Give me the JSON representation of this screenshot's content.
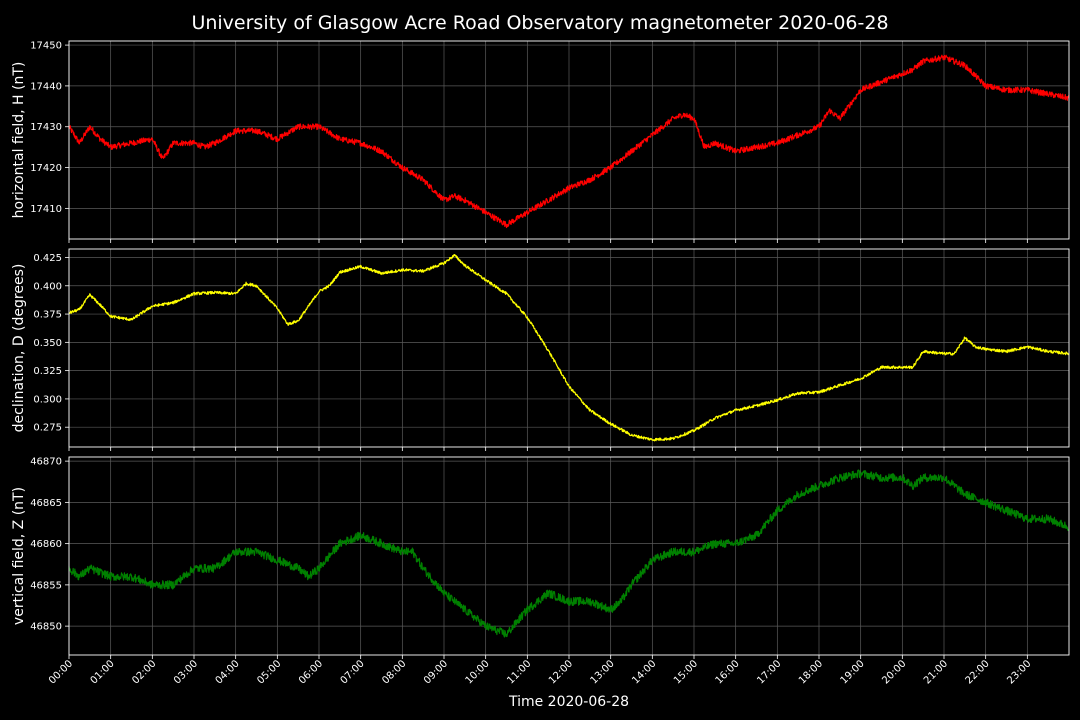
{
  "title": "University of Glasgow Acre Road Observatory magnetometer 2020-06-28",
  "xlabel": "Time 2020-06-28",
  "x_ticks": [
    "00:00",
    "01:00",
    "02:00",
    "03:00",
    "04:00",
    "05:00",
    "06:00",
    "07:00",
    "08:00",
    "09:00",
    "10:00",
    "11:00",
    "12:00",
    "13:00",
    "14:00",
    "15:00",
    "16:00",
    "17:00",
    "18:00",
    "19:00",
    "20:00",
    "21:00",
    "22:00",
    "23:00"
  ],
  "chart_data": [
    {
      "type": "line",
      "ylabel": "horizontal field, H (nT)",
      "color": "#ff0000",
      "xlim": [
        0,
        24
      ],
      "ylim": [
        17402.5,
        17451
      ],
      "yticks": [
        17410,
        17420,
        17430,
        17440,
        17450
      ],
      "grid": true,
      "series": [
        {
          "x": [
            0,
            0.25,
            0.5,
            0.75,
            1,
            1.5,
            2,
            2.25,
            2.5,
            3,
            3.25,
            3.5,
            4,
            4.5,
            5,
            5.5,
            6,
            6.5,
            7,
            7.5,
            8,
            8.5,
            9,
            9.25,
            9.5,
            10,
            10.5,
            11,
            11.5,
            12,
            12.5,
            13,
            13.5,
            14,
            14.5,
            14.75,
            15,
            15.25,
            15.5,
            16,
            16.5,
            17,
            17.5,
            18,
            18.25,
            18.5,
            19,
            19.5,
            20,
            20.25,
            20.5,
            21,
            21.25,
            21.5,
            22,
            22.5,
            23,
            23.5,
            24
          ],
          "y": [
            17430,
            17426,
            17430,
            17427,
            17425,
            17426,
            17427,
            17422,
            17426,
            17426,
            17425,
            17426,
            17429,
            17429,
            17427,
            17430,
            17430,
            17427,
            17426,
            17424,
            17420,
            17417,
            17412,
            17413,
            17412,
            17409,
            17406,
            17409,
            17412,
            17415,
            17417,
            17420,
            17424,
            17428,
            17432,
            17433,
            17432,
            17425,
            17426,
            17424,
            17425,
            17426,
            17428,
            17430,
            17434,
            17432,
            17439,
            17441,
            17443,
            17444,
            17446,
            17447,
            17446,
            17445,
            17440,
            17439,
            17439,
            17438,
            17437
          ],
          "noise": 0.7
        }
      ]
    },
    {
      "type": "line",
      "ylabel": "declination, D (degrees)",
      "color": "#ffff00",
      "xlim": [
        0,
        24
      ],
      "ylim": [
        0.2575,
        0.4325
      ],
      "yticks": [
        0.275,
        0.3,
        0.325,
        0.35,
        0.375,
        0.4,
        0.425
      ],
      "grid": true,
      "series": [
        {
          "x": [
            0,
            0.25,
            0.5,
            0.75,
            1,
            1.5,
            2,
            2.5,
            3,
            3.5,
            4,
            4.25,
            4.5,
            5,
            5.25,
            5.5,
            5.75,
            6,
            6.25,
            6.5,
            7,
            7.5,
            8,
            8.5,
            9,
            9.25,
            9.5,
            10,
            10.5,
            11,
            11.5,
            12,
            12.5,
            13,
            13.5,
            14,
            14.5,
            15,
            15.5,
            16,
            16.5,
            17,
            17.5,
            18,
            18.5,
            19,
            19.5,
            20,
            20.25,
            20.5,
            21,
            21.25,
            21.5,
            21.75,
            22,
            22.5,
            23,
            23.5,
            24
          ],
          "y": [
            0.376,
            0.379,
            0.392,
            0.383,
            0.373,
            0.37,
            0.382,
            0.385,
            0.393,
            0.394,
            0.393,
            0.402,
            0.4,
            0.38,
            0.366,
            0.369,
            0.382,
            0.395,
            0.4,
            0.412,
            0.417,
            0.411,
            0.414,
            0.413,
            0.42,
            0.427,
            0.418,
            0.405,
            0.393,
            0.372,
            0.343,
            0.311,
            0.29,
            0.278,
            0.268,
            0.264,
            0.265,
            0.272,
            0.283,
            0.29,
            0.294,
            0.299,
            0.305,
            0.306,
            0.312,
            0.318,
            0.328,
            0.328,
            0.328,
            0.342,
            0.34,
            0.34,
            0.354,
            0.346,
            0.344,
            0.342,
            0.346,
            0.342,
            0.34
          ],
          "noise": 0.0012
        }
      ]
    },
    {
      "type": "line",
      "ylabel": "vertical field, Z (nT)",
      "color": "#008000",
      "xlim": [
        0,
        24
      ],
      "ylim": [
        46846.5,
        46870.5
      ],
      "yticks": [
        46850,
        46855,
        46860,
        46865,
        46870
      ],
      "grid": true,
      "series": [
        {
          "x": [
            0,
            0.25,
            0.5,
            1,
            1.5,
            2,
            2.25,
            2.5,
            3,
            3.5,
            4,
            4.5,
            5,
            5.5,
            5.75,
            6,
            6.5,
            7,
            7.5,
            8,
            8.25,
            8.5,
            9,
            9.5,
            10,
            10.5,
            11,
            11.5,
            12,
            12.5,
            13,
            13.25,
            13.5,
            14,
            14.5,
            15,
            15.5,
            16,
            16.5,
            17,
            17.5,
            18,
            18.5,
            19,
            19.5,
            20,
            20.25,
            20.5,
            21,
            21.5,
            22,
            22.5,
            23,
            23.5,
            24
          ],
          "y": [
            46857,
            46856,
            46857,
            46856,
            46856,
            46855,
            46855,
            46855,
            46857,
            46857,
            46859,
            46859,
            46858,
            46857,
            46856,
            46857,
            46860,
            46861,
            46860,
            46859,
            46859,
            46857,
            46854,
            46852,
            46850,
            46849,
            46852,
            46854,
            46853,
            46853,
            46852,
            46853,
            46855,
            46858,
            46859,
            46859,
            46860,
            46860,
            46861,
            46864,
            46866,
            46867,
            46868,
            46868.5,
            46868,
            46868,
            46867,
            46868,
            46868,
            46866,
            46865,
            46864,
            46863,
            46863,
            46862
          ],
          "noise": 0.5
        }
      ]
    }
  ]
}
